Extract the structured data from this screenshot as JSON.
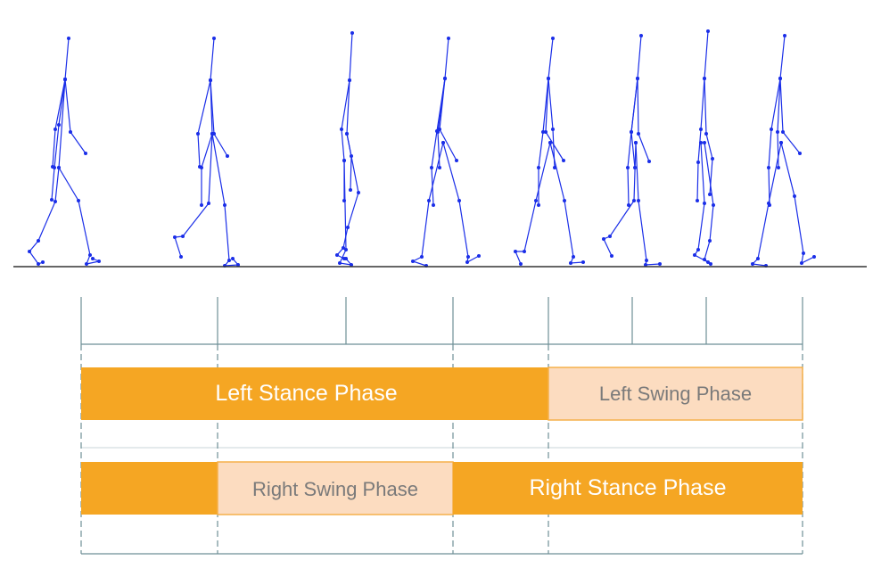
{
  "colors": {
    "figure": "#1a2ee8",
    "ground": "#333333",
    "stance": "#f5a623",
    "swing": "#fcdcc0",
    "swing_border": "#f5b04a",
    "grid": "#6e8f96"
  },
  "phases": {
    "left_stance": "Left Stance Phase",
    "left_swing": "Left Swing Phase",
    "right_swing": "Right Swing Phase",
    "right_stance": "Right Stance Phase"
  },
  "frames_count": 8
}
